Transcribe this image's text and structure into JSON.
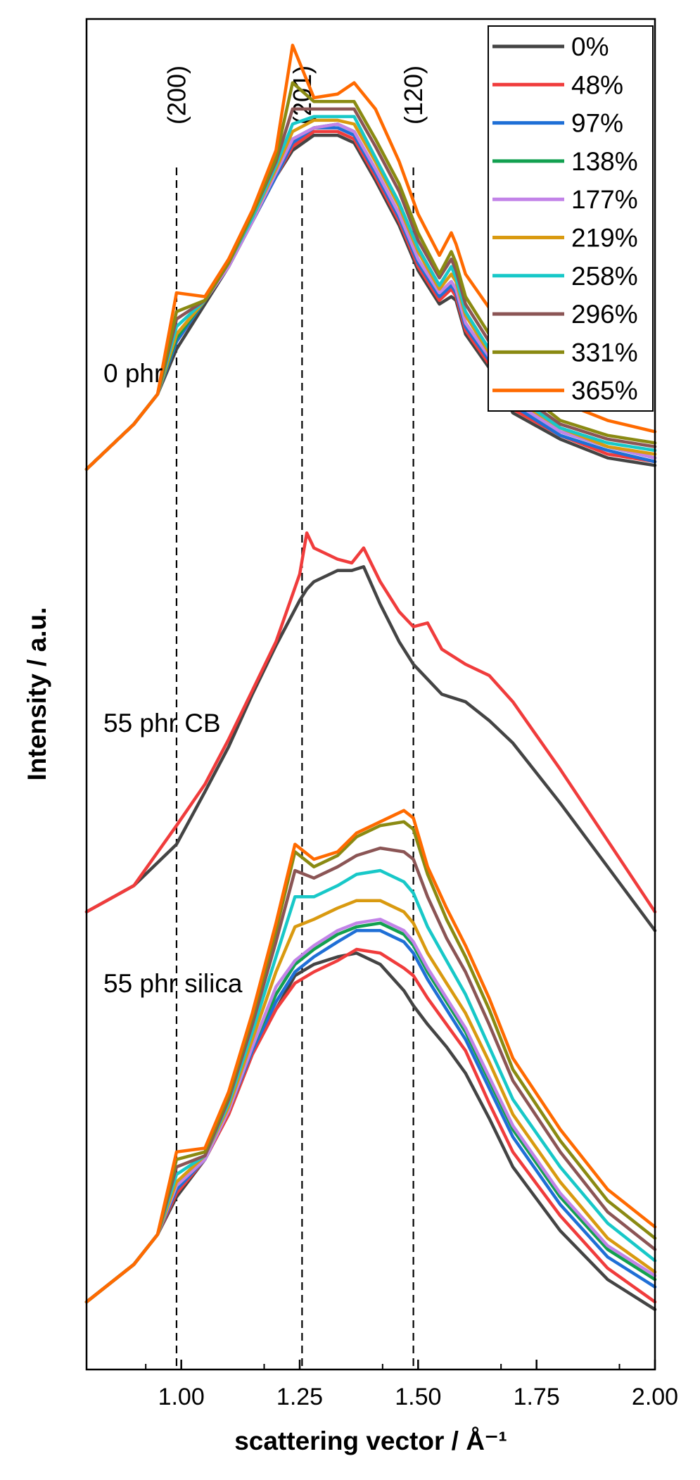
{
  "chart_data": {
    "type": "line",
    "xlabel": "scattering vector / Å⁻¹",
    "ylabel": "Intensity / a.u.",
    "xlim": [
      0.8,
      2.0
    ],
    "ylim": [
      0,
      36
    ],
    "xticks": [
      1.0,
      1.25,
      1.5,
      1.75,
      2.0
    ],
    "xtick_labels": [
      "1.00",
      "1.25",
      "1.50",
      "1.75",
      "2.00"
    ],
    "y_tick_labels_shown": false,
    "grid": false,
    "legend_position": "top-right",
    "legend": [
      {
        "label": "0%",
        "color": "#444444"
      },
      {
        "label": "48%",
        "color": "#f03c3c"
      },
      {
        "label": "97%",
        "color": "#1f6fd6"
      },
      {
        "label": "138%",
        "color": "#12a050"
      },
      {
        "label": "177%",
        "color": "#c283e8"
      },
      {
        "label": "219%",
        "color": "#d99a10"
      },
      {
        "label": "258%",
        "color": "#18c8c8"
      },
      {
        "label": "296%",
        "color": "#8b5555"
      },
      {
        "label": "331%",
        "color": "#8a8a12"
      },
      {
        "label": "365%",
        "color": "#ff6a00"
      }
    ],
    "reference_lines": [
      {
        "x": 0.99,
        "label": "(200)"
      },
      {
        "x": 1.255,
        "label": "(201)"
      },
      {
        "x": 1.49,
        "label": "(120)"
      }
    ],
    "panels": [
      {
        "label": "0 phr",
        "x": [
          0.8,
          0.9,
          0.95,
          0.99,
          1.05,
          1.1,
          1.15,
          1.2,
          1.235,
          1.28,
          1.33,
          1.365,
          1.41,
          1.46,
          1.5,
          1.545,
          1.57,
          1.58,
          1.6,
          1.65,
          1.7,
          1.8,
          1.9,
          2.0
        ],
        "series": [
          {
            "name": "0%",
            "values": [
              24.0,
              25.2,
              26.0,
              27.2,
              28.4,
              29.4,
              30.6,
              31.8,
              32.5,
              32.9,
              32.9,
              32.7,
              31.7,
              30.5,
              29.3,
              28.4,
              28.6,
              28.5,
              27.6,
              26.7,
              25.5,
              24.8,
              24.3,
              24.1
            ]
          },
          {
            "name": "48%",
            "values": [
              24.0,
              25.2,
              26.0,
              27.4,
              28.5,
              29.4,
              30.6,
              31.8,
              32.6,
              33.0,
              33.0,
              32.8,
              31.8,
              30.6,
              29.4,
              28.5,
              28.8,
              28.6,
              27.7,
              26.8,
              25.6,
              24.9,
              24.4,
              24.2
            ]
          },
          {
            "name": "97%",
            "values": [
              24.0,
              25.2,
              26.0,
              27.4,
              28.5,
              29.4,
              30.6,
              31.8,
              32.7,
              33.1,
              33.1,
              32.9,
              31.9,
              30.7,
              29.5,
              28.6,
              28.9,
              28.7,
              27.8,
              26.9,
              25.7,
              24.9,
              24.5,
              24.2
            ]
          },
          {
            "name": "138%",
            "values": [
              24.0,
              25.2,
              26.0,
              27.5,
              28.5,
              29.4,
              30.6,
              31.9,
              32.8,
              33.1,
              33.2,
              33.0,
              32.0,
              30.8,
              29.6,
              28.7,
              29.0,
              28.8,
              27.9,
              27.0,
              25.8,
              25.0,
              24.6,
              24.3
            ]
          },
          {
            "name": "177%",
            "values": [
              24.0,
              25.2,
              26.0,
              27.6,
              28.5,
              29.4,
              30.6,
              31.9,
              32.8,
              33.1,
              33.2,
              33.0,
              32.0,
              30.8,
              29.6,
              28.7,
              29.0,
              28.8,
              27.9,
              27.0,
              25.8,
              25.0,
              24.6,
              24.3
            ]
          },
          {
            "name": "219%",
            "values": [
              24.0,
              25.2,
              26.0,
              27.6,
              28.5,
              29.5,
              30.7,
              32.0,
              33.0,
              33.3,
              33.3,
              33.2,
              32.2,
              31.0,
              29.8,
              28.8,
              29.2,
              29.0,
              28.1,
              27.1,
              25.9,
              25.1,
              24.6,
              24.4
            ]
          },
          {
            "name": "258%",
            "values": [
              24.0,
              25.2,
              26.0,
              27.8,
              28.5,
              29.5,
              30.7,
              32.1,
              33.2,
              33.4,
              33.4,
              33.4,
              32.3,
              31.1,
              29.9,
              28.9,
              29.4,
              29.1,
              28.2,
              27.2,
              26.0,
              25.1,
              24.7,
              24.5
            ]
          },
          {
            "name": "296%",
            "values": [
              24.0,
              25.2,
              26.0,
              28.0,
              28.5,
              29.5,
              30.8,
              32.2,
              33.6,
              33.6,
              33.6,
              33.6,
              32.6,
              31.4,
              30.1,
              29.1,
              29.6,
              29.3,
              28.4,
              27.4,
              26.1,
              25.2,
              24.8,
              24.6
            ]
          },
          {
            "name": "331%",
            "values": [
              24.0,
              25.2,
              26.0,
              28.2,
              28.5,
              29.5,
              30.8,
              32.3,
              34.3,
              33.8,
              33.8,
              33.8,
              32.8,
              31.6,
              30.3,
              29.2,
              29.8,
              29.5,
              28.6,
              27.6,
              26.3,
              25.3,
              24.9,
              24.7
            ]
          },
          {
            "name": "365%",
            "values": [
              24.0,
              25.2,
              26.0,
              28.7,
              28.6,
              29.6,
              30.9,
              32.5,
              35.3,
              33.9,
              34.0,
              34.3,
              33.6,
              32.2,
              30.8,
              29.7,
              30.3,
              30.0,
              29.2,
              28.3,
              27.0,
              25.8,
              25.3,
              25.0
            ]
          }
        ]
      },
      {
        "label": "55 phr CB",
        "x": [
          0.8,
          0.9,
          0.99,
          1.05,
          1.1,
          1.15,
          1.2,
          1.25,
          1.265,
          1.28,
          1.33,
          1.36,
          1.385,
          1.42,
          1.46,
          1.49,
          1.52,
          1.55,
          1.6,
          1.65,
          1.7,
          1.8,
          1.9,
          2.0
        ],
        "series": [
          {
            "name": "0%",
            "values": [
              12.2,
              12.9,
              14.0,
              15.4,
              16.6,
              18.0,
              19.3,
              20.5,
              20.8,
              21.0,
              21.3,
              21.3,
              21.4,
              20.4,
              19.4,
              18.8,
              18.4,
              18.0,
              17.8,
              17.3,
              16.7,
              15.1,
              13.4,
              11.7
            ]
          },
          {
            "name": "48%",
            "values": [
              12.2,
              12.9,
              14.5,
              15.6,
              16.8,
              18.1,
              19.4,
              21.2,
              22.3,
              21.9,
              21.6,
              21.5,
              21.9,
              21.0,
              20.2,
              19.8,
              19.9,
              19.2,
              18.8,
              18.5,
              17.8,
              16.0,
              14.1,
              12.2
            ]
          }
        ]
      },
      {
        "label": "55 phr silica",
        "x": [
          0.8,
          0.9,
          0.95,
          0.99,
          1.05,
          1.1,
          1.15,
          1.2,
          1.24,
          1.28,
          1.33,
          1.37,
          1.42,
          1.47,
          1.49,
          1.52,
          1.56,
          1.6,
          1.65,
          1.7,
          1.8,
          1.9,
          2.0
        ],
        "series": [
          {
            "name": "0%",
            "values": [
              1.8,
              2.8,
              3.6,
              4.6,
              5.6,
              6.8,
              8.4,
              9.6,
              10.5,
              10.8,
              11.0,
              11.1,
              10.8,
              10.1,
              9.7,
              9.2,
              8.6,
              7.9,
              6.7,
              5.4,
              3.7,
              2.4,
              1.6
            ]
          },
          {
            "name": "48%",
            "values": [
              1.8,
              2.8,
              3.6,
              4.7,
              5.6,
              6.8,
              8.4,
              9.6,
              10.3,
              10.6,
              10.9,
              11.2,
              11.1,
              10.7,
              10.5,
              9.9,
              9.2,
              8.5,
              7.1,
              5.8,
              4.1,
              2.7,
              1.8
            ]
          },
          {
            "name": "97%",
            "values": [
              1.8,
              2.8,
              3.6,
              4.8,
              5.6,
              6.9,
              8.5,
              9.8,
              10.6,
              11.0,
              11.4,
              11.7,
              11.7,
              11.4,
              11.1,
              10.4,
              9.6,
              8.8,
              7.5,
              6.2,
              4.4,
              3.0,
              2.2
            ]
          },
          {
            "name": "138%",
            "values": [
              1.8,
              2.8,
              3.6,
              4.9,
              5.6,
              6.9,
              8.6,
              10.0,
              10.8,
              11.2,
              11.6,
              11.8,
              11.9,
              11.6,
              11.3,
              10.6,
              9.8,
              9.0,
              7.7,
              6.4,
              4.6,
              3.2,
              2.4
            ]
          },
          {
            "name": "177%",
            "values": [
              1.8,
              2.8,
              3.6,
              4.9,
              5.6,
              6.9,
              8.6,
              10.2,
              10.9,
              11.3,
              11.7,
              11.9,
              12.0,
              11.7,
              11.4,
              10.7,
              9.9,
              9.1,
              7.8,
              6.5,
              4.7,
              3.3,
              2.5
            ]
          },
          {
            "name": "219%",
            "values": [
              1.8,
              2.8,
              3.6,
              5.0,
              5.7,
              7.0,
              8.8,
              10.6,
              11.8,
              12.0,
              12.3,
              12.5,
              12.5,
              12.2,
              11.9,
              11.1,
              10.3,
              9.5,
              8.2,
              6.8,
              5.0,
              3.5,
              2.6
            ]
          },
          {
            "name": "258%",
            "values": [
              1.8,
              2.8,
              3.6,
              5.2,
              5.7,
              7.1,
              9.0,
              11.0,
              12.6,
              12.6,
              12.9,
              13.2,
              13.3,
              13.0,
              12.7,
              11.8,
              10.9,
              10.0,
              8.6,
              7.2,
              5.4,
              3.9,
              2.9
            ]
          },
          {
            "name": "296%",
            "values": [
              1.8,
              2.8,
              3.6,
              5.4,
              5.7,
              7.2,
              9.2,
              11.4,
              13.3,
              13.1,
              13.4,
              13.7,
              13.9,
              13.8,
              13.6,
              12.6,
              11.5,
              10.6,
              9.2,
              7.7,
              5.8,
              4.2,
              3.2
            ]
          },
          {
            "name": "331%",
            "values": [
              1.8,
              2.8,
              3.6,
              5.6,
              5.8,
              7.3,
              9.4,
              11.7,
              13.8,
              13.4,
              13.7,
              14.2,
              14.5,
              14.6,
              14.4,
              13.2,
              12.0,
              11.0,
              9.6,
              8.0,
              6.1,
              4.5,
              3.5
            ]
          },
          {
            "name": "365%",
            "values": [
              1.8,
              2.8,
              3.6,
              5.8,
              5.9,
              7.4,
              9.5,
              11.9,
              14.0,
              13.6,
              13.8,
              14.3,
              14.6,
              14.9,
              14.7,
              13.4,
              12.3,
              11.3,
              9.9,
              8.3,
              6.4,
              4.8,
              3.8
            ]
          }
        ]
      }
    ]
  }
}
